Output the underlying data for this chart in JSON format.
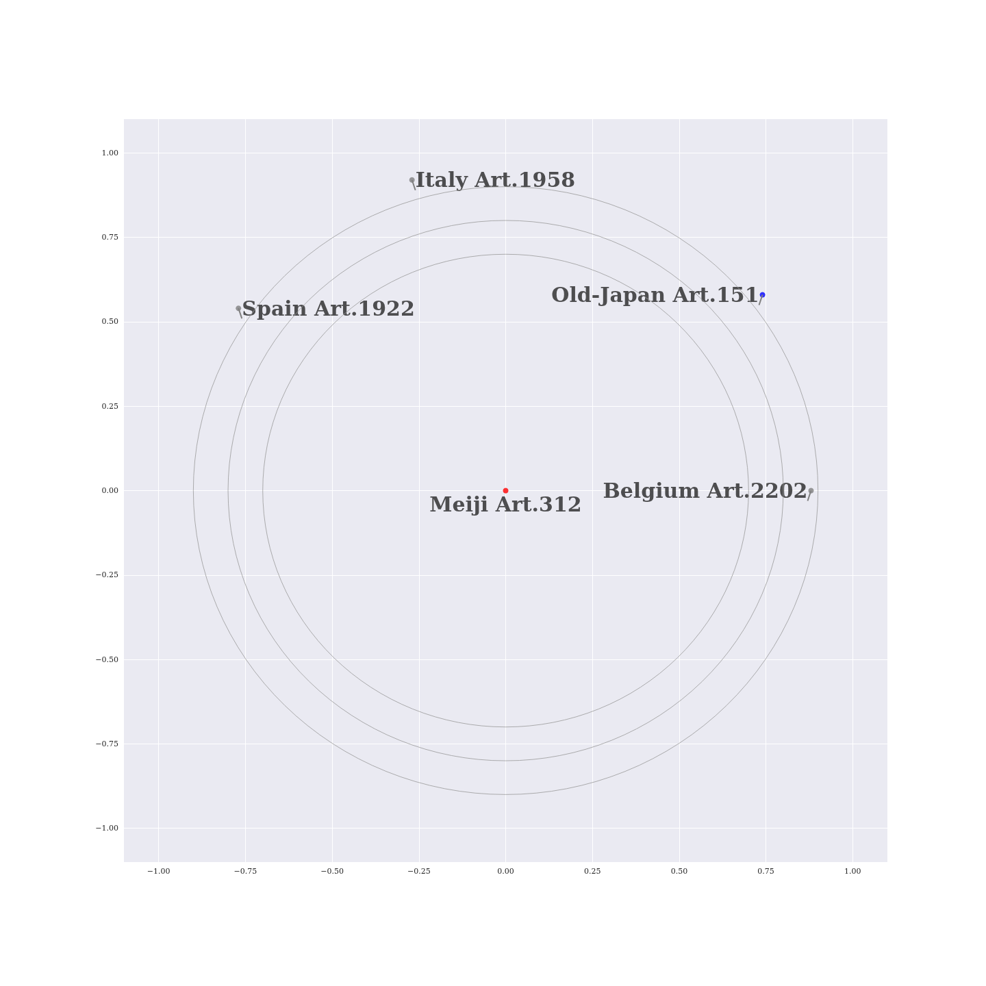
{
  "chart_data": {
    "type": "scatter",
    "xlim": [
      -1.1,
      1.1
    ],
    "ylim": [
      -1.1,
      1.1
    ],
    "xticks": [
      {
        "value": -1,
        "label": "−1.00"
      },
      {
        "value": -0.75,
        "label": "−0.75"
      },
      {
        "value": -0.5,
        "label": "−0.50"
      },
      {
        "value": -0.25,
        "label": "−0.25"
      },
      {
        "value": 0,
        "label": "0.00"
      },
      {
        "value": 0.25,
        "label": "0.25"
      },
      {
        "value": 0.5,
        "label": "0.50"
      },
      {
        "value": 0.75,
        "label": "0.75"
      },
      {
        "value": 1,
        "label": "1.00"
      }
    ],
    "yticks": [
      {
        "value": -1,
        "label": "−1.00"
      },
      {
        "value": -0.75,
        "label": "−0.75"
      },
      {
        "value": -0.5,
        "label": "−0.50"
      },
      {
        "value": -0.25,
        "label": "−0.25"
      },
      {
        "value": 0,
        "label": "0.00"
      },
      {
        "value": 0.25,
        "label": "0.25"
      },
      {
        "value": 0.5,
        "label": "0.50"
      },
      {
        "value": 0.75,
        "label": "0.75"
      },
      {
        "value": 1,
        "label": "1.00"
      }
    ],
    "grid": true,
    "marker": "circle",
    "series": [
      {
        "x": [
          -0.27,
          -0.77,
          0.74,
          0.88,
          0
        ],
        "values": [
          0.92,
          0.54,
          0.58,
          0,
          0
        ],
        "colors": [
          "#808080",
          "#808080",
          "#0000ff",
          "#808080",
          "#ff0000"
        ]
      }
    ],
    "annotations": [
      {
        "text": "Italy Art.1958",
        "x": -0.27,
        "y": 0.92
      },
      {
        "text": "Spain Art.1922",
        "x": -0.77,
        "y": 0.54
      },
      {
        "text": "Old-Japan Art.151",
        "x": 0.74,
        "y": 0.58
      },
      {
        "text": "Belgium Art.2202",
        "x": 0.88,
        "y": 0
      },
      {
        "text": "Meiji Art.312",
        "x": 0,
        "y": 0
      }
    ]
  }
}
